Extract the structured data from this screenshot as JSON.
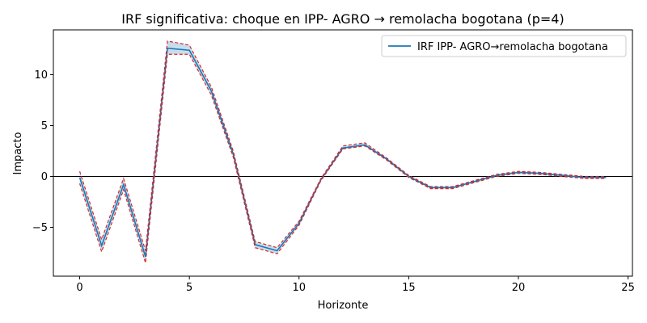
{
  "chart_data": {
    "type": "line",
    "title": "IRF significativa: choque en IPP- AGRO → remolacha bogotana (p=4)",
    "xlabel": "Horizonte",
    "ylabel": "Impacto",
    "xlim": [
      -1.2,
      25.2
    ],
    "ylim": [
      -9.8,
      14.4
    ],
    "xticks": [
      0,
      5,
      10,
      15,
      20,
      25
    ],
    "yticks": [
      -5,
      0,
      5,
      10
    ],
    "grid": false,
    "legend_position": "top-right",
    "zero_line": 0,
    "x": [
      0,
      1,
      2,
      3,
      4,
      5,
      6,
      7,
      8,
      9,
      10,
      11,
      12,
      13,
      14,
      15,
      16,
      17,
      18,
      19,
      20,
      21,
      22,
      23,
      24
    ],
    "series": [
      {
        "name": "IRF IPP- AGRO→remolacha bogotana",
        "color": "#1f77b4",
        "values": [
          -0.1,
          -6.8,
          -0.8,
          -7.9,
          12.6,
          12.4,
          8.4,
          2.2,
          -6.7,
          -7.3,
          -4.6,
          -0.3,
          2.8,
          3.1,
          1.7,
          0.0,
          -1.1,
          -1.1,
          -0.5,
          0.1,
          0.4,
          0.3,
          0.1,
          -0.1,
          -0.1
        ]
      }
    ],
    "band": {
      "color": "#d62728",
      "fill_color": "#1f77b4",
      "lower": [
        -0.7,
        -7.4,
        -1.3,
        -8.5,
        12.0,
        12.0,
        8.0,
        1.9,
        -7.0,
        -7.6,
        -4.8,
        -0.4,
        2.7,
        3.0,
        1.6,
        -0.1,
        -1.2,
        -1.2,
        -0.6,
        0.0,
        0.3,
        0.2,
        0.0,
        -0.2,
        -0.2
      ],
      "upper": [
        0.5,
        -6.2,
        -0.2,
        -7.3,
        13.3,
        12.9,
        8.8,
        2.5,
        -6.4,
        -7.0,
        -4.4,
        -0.2,
        3.0,
        3.3,
        1.8,
        0.1,
        -1.0,
        -1.0,
        -0.4,
        0.2,
        0.5,
        0.4,
        0.2,
        0.0,
        0.0
      ]
    }
  }
}
